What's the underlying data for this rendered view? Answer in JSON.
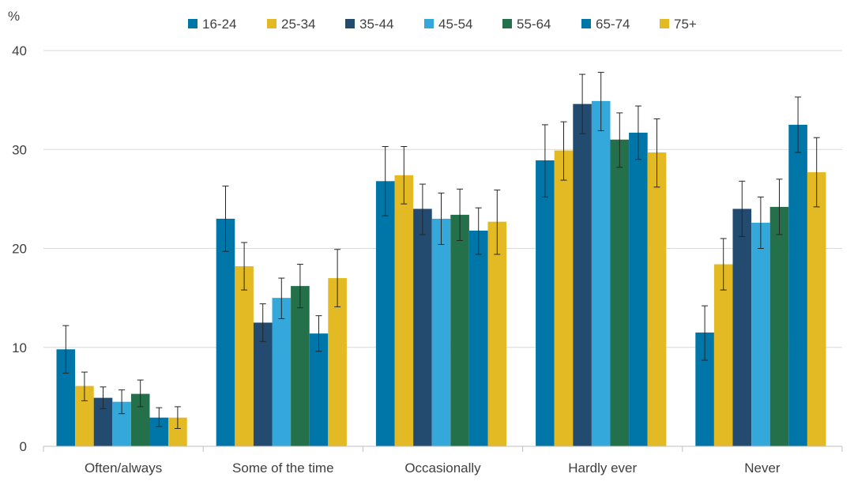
{
  "chart_data": {
    "type": "bar",
    "title": "",
    "ylabel": "%",
    "xlabel": "",
    "ylim": [
      0,
      40
    ],
    "yticks": [
      "0",
      "10",
      "20",
      "30",
      "40"
    ],
    "grid": true,
    "legend_position": "top",
    "categories": [
      "Often/always",
      "Some of the time",
      "Occasionally",
      "Hardly ever",
      "Never"
    ],
    "series": [
      {
        "name": "16-24",
        "color": "#0076A8",
        "values": [
          9.8,
          23.0,
          26.8,
          28.9,
          11.5
        ],
        "err_low": [
          7.4,
          19.7,
          23.3,
          25.2,
          8.7
        ],
        "err_high": [
          12.2,
          26.3,
          30.3,
          32.5,
          14.2
        ]
      },
      {
        "name": "25-34",
        "color": "#E3BA23",
        "values": [
          6.1,
          18.2,
          27.4,
          29.9,
          18.4
        ],
        "err_low": [
          4.6,
          15.8,
          24.5,
          26.9,
          15.8
        ],
        "err_high": [
          7.5,
          20.6,
          30.3,
          32.8,
          21.0
        ]
      },
      {
        "name": "35-44",
        "color": "#234A6F",
        "values": [
          4.9,
          12.5,
          24.0,
          34.6,
          24.0
        ],
        "err_low": [
          3.8,
          10.6,
          21.4,
          31.6,
          21.2
        ],
        "err_high": [
          6.0,
          14.4,
          26.5,
          37.6,
          26.8
        ]
      },
      {
        "name": "45-54",
        "color": "#35A8DB",
        "values": [
          4.5,
          15.0,
          23.0,
          34.9,
          22.6
        ],
        "err_low": [
          3.3,
          12.9,
          20.4,
          31.9,
          20.0
        ],
        "err_high": [
          5.7,
          17.0,
          25.6,
          37.8,
          25.2
        ]
      },
      {
        "name": "55-64",
        "color": "#24704B",
        "values": [
          5.3,
          16.2,
          23.4,
          31.0,
          24.2
        ],
        "err_low": [
          4.0,
          14.0,
          20.8,
          28.2,
          21.4
        ],
        "err_high": [
          6.7,
          18.4,
          26.0,
          33.7,
          27.0
        ]
      },
      {
        "name": "65-74",
        "color": "#0076A8",
        "values": [
          2.9,
          11.4,
          21.8,
          31.7,
          32.5
        ],
        "err_low": [
          2.0,
          9.6,
          19.4,
          29.0,
          29.7
        ],
        "err_high": [
          3.9,
          13.2,
          24.1,
          34.4,
          35.3
        ]
      },
      {
        "name": "75+",
        "color": "#E3BA23",
        "values": [
          2.9,
          17.0,
          22.7,
          29.7,
          27.7
        ],
        "err_low": [
          1.8,
          14.1,
          19.4,
          26.2,
          24.2
        ],
        "err_high": [
          4.0,
          19.9,
          25.9,
          33.1,
          31.2
        ]
      }
    ]
  }
}
